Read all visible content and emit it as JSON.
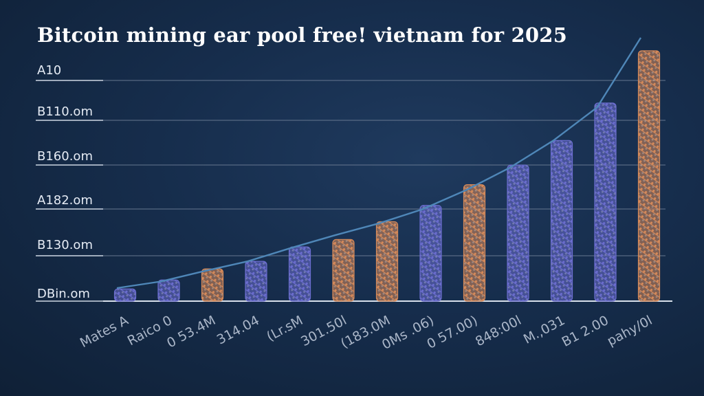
{
  "chart_data": {
    "type": "bar",
    "title": "Bitcoin mining ear pool free! vietnam for 2025",
    "y_tick_labels": [
      "DBin.om",
      "B130.om",
      "A182.om",
      "B160.om",
      "B110.om",
      "A10"
    ],
    "categories": [
      "Mates A",
      "Raico 0",
      "0 53.4M",
      "314.04",
      "(Lr.sM",
      "301.50l",
      "(183.0M",
      "0Ms .06)",
      "0 57.00)",
      "848:00l",
      "M.,031",
      "B1 2.00",
      "pahy/0l"
    ],
    "values": [
      5.6,
      9.7,
      14.8,
      18.3,
      24.9,
      28.3,
      36.5,
      44.0,
      53.5,
      62.5,
      73.8,
      91.0,
      115.0
    ],
    "trend_line": [
      6.0,
      9.0,
      13.8,
      18.3,
      24.5,
      30.3,
      35.7,
      42.2,
      51.0,
      61.3,
      73.8,
      89.0,
      121.0
    ],
    "bar_colors": [
      "#6b6dcf",
      "#6b6dcf",
      "#d68a5a",
      "#6b6dcf",
      "#6b6dcf",
      "#d68a5a",
      "#d68a5a",
      "#6b6dcf",
      "#d68a5a",
      "#6b6dcf",
      "#6b6dcf",
      "#6b6dcf",
      "#d68a5a"
    ],
    "line_color": "#4f87b8",
    "ylim": [
      0,
      120
    ],
    "grid": true,
    "legend": "none"
  }
}
